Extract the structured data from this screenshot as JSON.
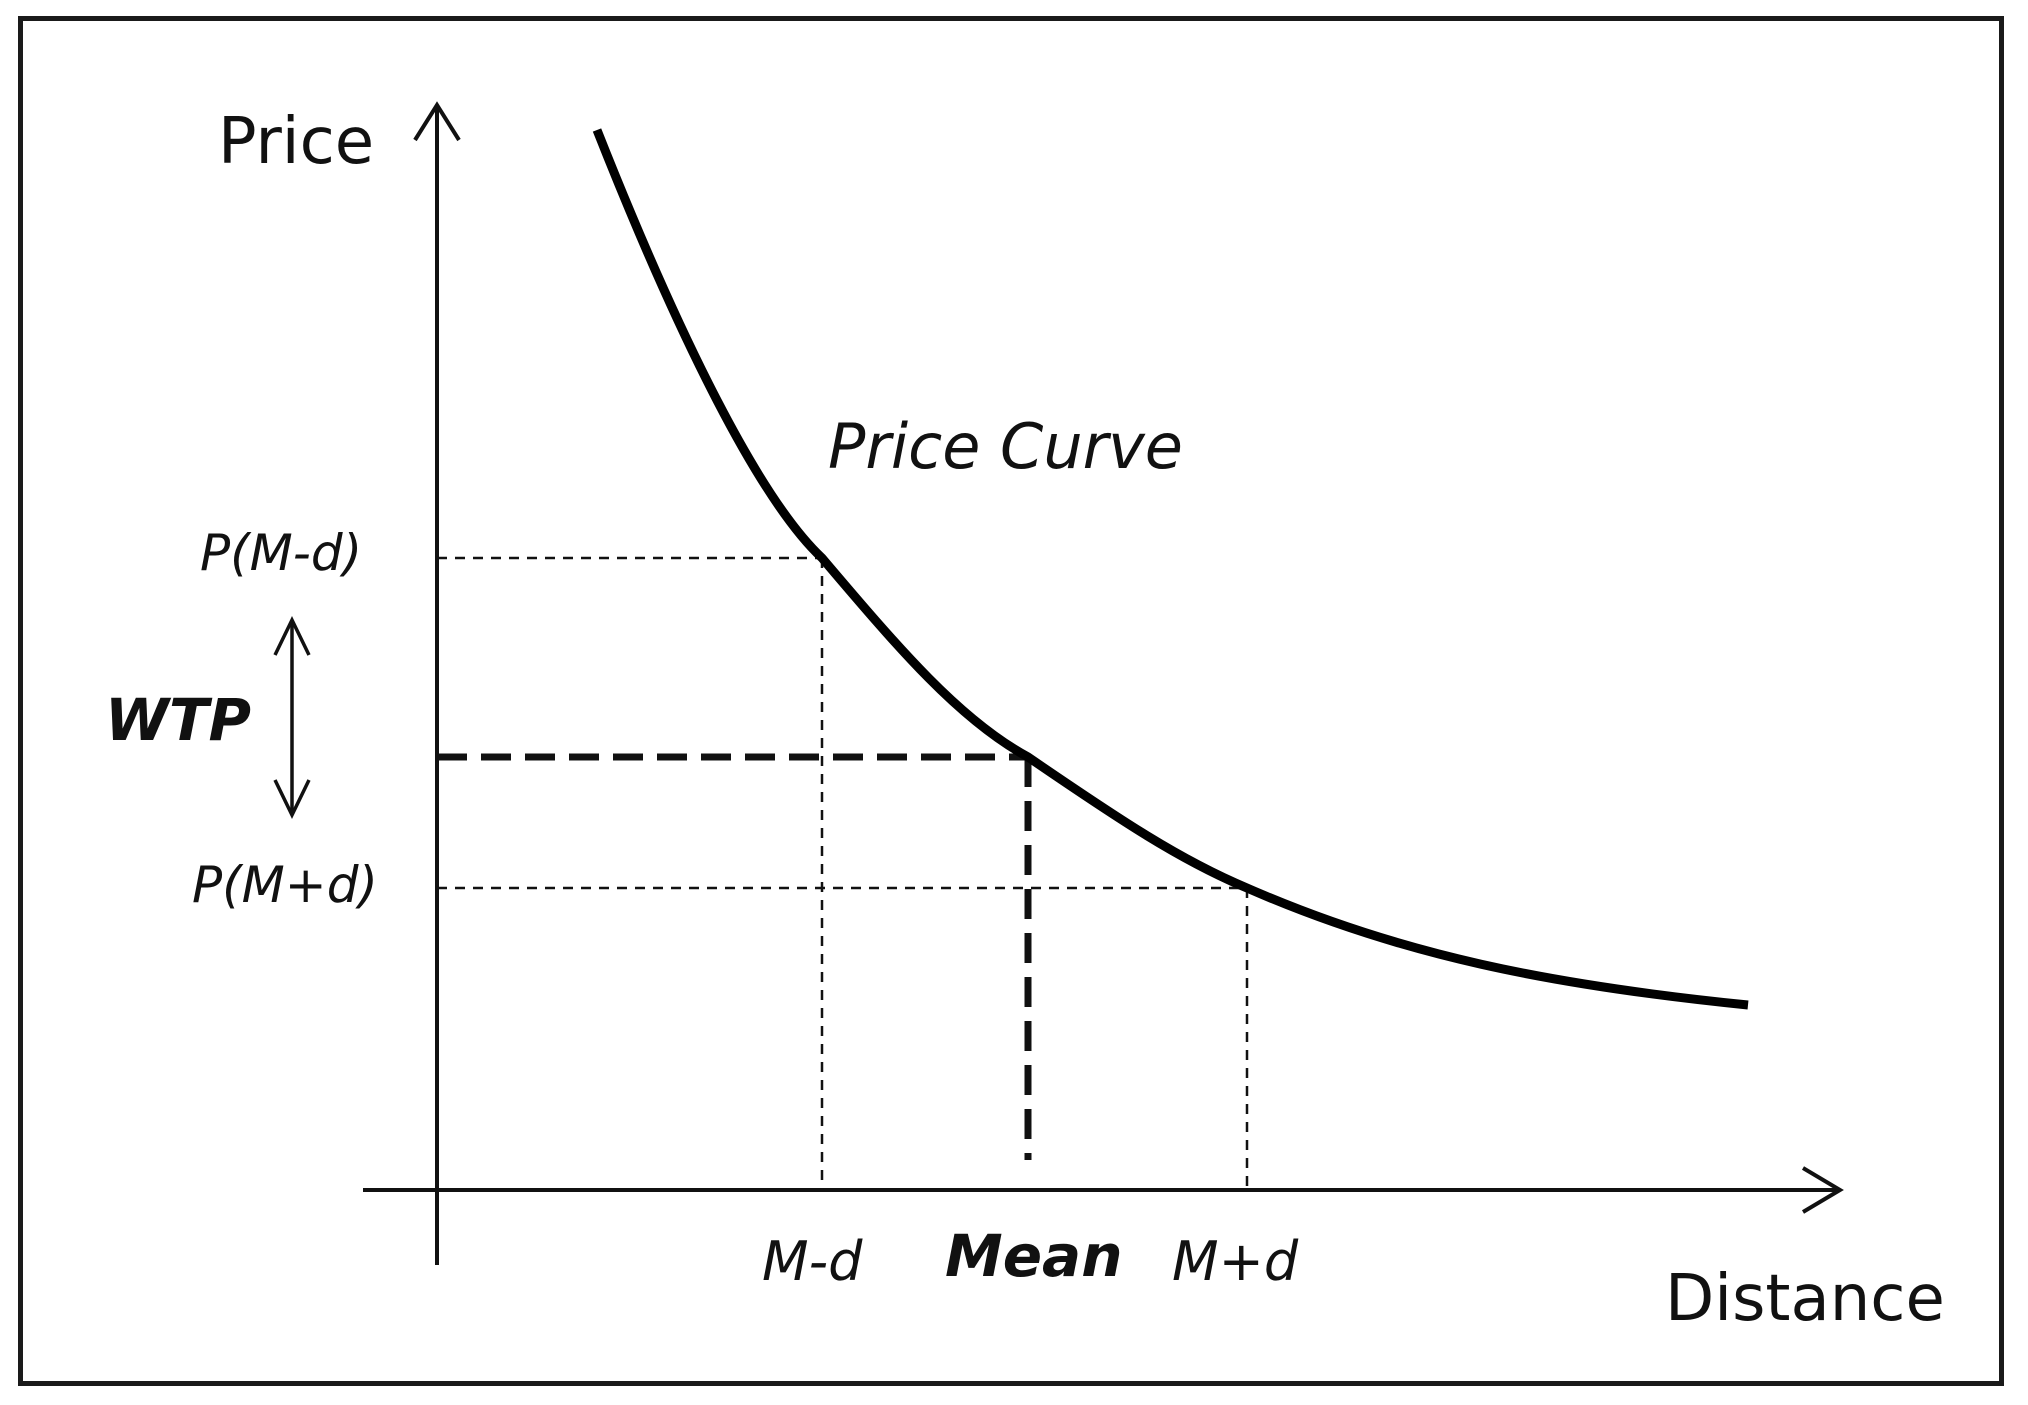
{
  "diagram": {
    "y_axis_label": "Price",
    "x_axis_label": "Distance",
    "curve_label": "Price Curve",
    "p_low_label": "P(M-d)",
    "p_high_label": "P(M+d)",
    "wtp_label": "WTP",
    "m_minus_label": "M-d",
    "mean_label": "Mean",
    "m_plus_label": "M+d",
    "curve_color": "#000000"
  }
}
